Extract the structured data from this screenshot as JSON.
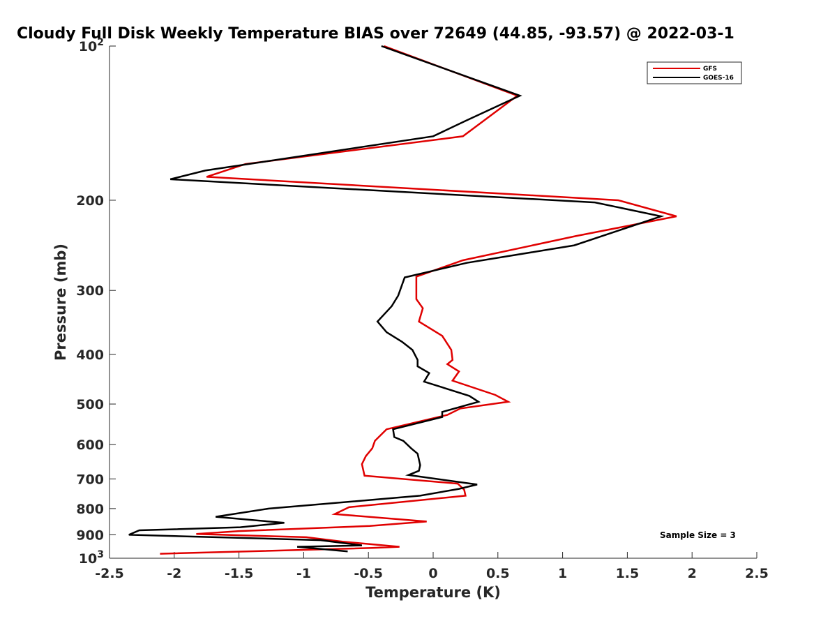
{
  "chart_data": {
    "type": "line",
    "title": "Cloudy Full Disk Weekly Temperature BIAS over 72649 (44.85, -93.57) @ 2022-03-1",
    "xlabel": "Temperature (K)",
    "ylabel": "Pressure (mb)",
    "xlim": [
      -2.5,
      2.5
    ],
    "ylim": [
      100,
      1000
    ],
    "y_scale": "log",
    "y_reversed": true,
    "x_ticks": [
      "-2.5",
      "-2",
      "-1.5",
      "-1",
      "-0.5",
      "0",
      "0.5",
      "1",
      "1.5",
      "2",
      "2.5"
    ],
    "y_ticks": [
      {
        "value": 100,
        "base": "10",
        "exp": "2"
      },
      {
        "value": 200,
        "label": "200"
      },
      {
        "value": 300,
        "label": "300"
      },
      {
        "value": 400,
        "label": "400"
      },
      {
        "value": 500,
        "label": "500"
      },
      {
        "value": 600,
        "label": "600"
      },
      {
        "value": 700,
        "label": "700"
      },
      {
        "value": 800,
        "label": "800"
      },
      {
        "value": 900,
        "label": "900"
      },
      {
        "value": 1000,
        "base": "10",
        "exp": "3"
      }
    ],
    "grid": false,
    "legend_position": "top-right",
    "annotation": "Sample Size = 3",
    "series": [
      {
        "name": "GFS",
        "color": "#e00000",
        "points": [
          [
            -0.38,
            100
          ],
          [
            0.65,
            125
          ],
          [
            0.23,
            150
          ],
          [
            -1.45,
            170
          ],
          [
            -1.75,
            180
          ],
          [
            1.43,
            200
          ],
          [
            1.88,
            215
          ],
          [
            1.1,
            235
          ],
          [
            0.23,
            262
          ],
          [
            -0.13,
            282
          ],
          [
            -0.13,
            312
          ],
          [
            -0.08,
            325
          ],
          [
            -0.11,
            345
          ],
          [
            0.07,
            368
          ],
          [
            0.14,
            392
          ],
          [
            0.15,
            410
          ],
          [
            0.11,
            418
          ],
          [
            0.2,
            432
          ],
          [
            0.15,
            450
          ],
          [
            0.48,
            480
          ],
          [
            0.58,
            495
          ],
          [
            0.21,
            510
          ],
          [
            0.11,
            525
          ],
          [
            -0.36,
            560
          ],
          [
            -0.45,
            590
          ],
          [
            -0.47,
            610
          ],
          [
            -0.52,
            632
          ],
          [
            -0.55,
            655
          ],
          [
            -0.53,
            690
          ],
          [
            0.19,
            715
          ],
          [
            0.24,
            735
          ],
          [
            0.25,
            755
          ],
          [
            -0.65,
            795
          ],
          [
            -0.76,
            820
          ],
          [
            -0.05,
            848
          ],
          [
            -0.49,
            865
          ],
          [
            -1.5,
            885
          ],
          [
            -1.83,
            897
          ],
          [
            -0.98,
            910
          ],
          [
            -0.7,
            928
          ],
          [
            -0.26,
            950
          ],
          [
            -0.47,
            955
          ],
          [
            -2.11,
            980
          ]
        ]
      },
      {
        "name": "GOES-16",
        "color": "#000000",
        "points": [
          [
            -0.4,
            100
          ],
          [
            0.67,
            125
          ],
          [
            0.25,
            140
          ],
          [
            0.0,
            150
          ],
          [
            -1.76,
            175
          ],
          [
            -2.03,
            182
          ],
          [
            1.25,
            202
          ],
          [
            1.76,
            215
          ],
          [
            1.09,
            245
          ],
          [
            0.26,
            265
          ],
          [
            -0.22,
            283
          ],
          [
            -0.27,
            307
          ],
          [
            -0.32,
            322
          ],
          [
            -0.43,
            345
          ],
          [
            -0.36,
            362
          ],
          [
            -0.24,
            378
          ],
          [
            -0.16,
            392
          ],
          [
            -0.12,
            410
          ],
          [
            -0.12,
            422
          ],
          [
            -0.03,
            435
          ],
          [
            -0.07,
            452
          ],
          [
            0.28,
            482
          ],
          [
            0.35,
            495
          ],
          [
            0.07,
            518
          ],
          [
            0.07,
            530
          ],
          [
            -0.31,
            560
          ],
          [
            -0.3,
            580
          ],
          [
            -0.23,
            590
          ],
          [
            -0.17,
            610
          ],
          [
            -0.12,
            625
          ],
          [
            -0.1,
            658
          ],
          [
            -0.11,
            675
          ],
          [
            -0.19,
            688
          ],
          [
            0.34,
            718
          ],
          [
            0.2,
            732
          ],
          [
            -0.1,
            755
          ],
          [
            -1.27,
            800
          ],
          [
            -1.68,
            830
          ],
          [
            -1.15,
            853
          ],
          [
            -1.49,
            870
          ],
          [
            -2.27,
            882
          ],
          [
            -2.35,
            900
          ],
          [
            -0.87,
            922
          ],
          [
            -0.55,
            944
          ],
          [
            -1.05,
            950
          ],
          [
            -0.66,
            970
          ]
        ]
      }
    ]
  }
}
